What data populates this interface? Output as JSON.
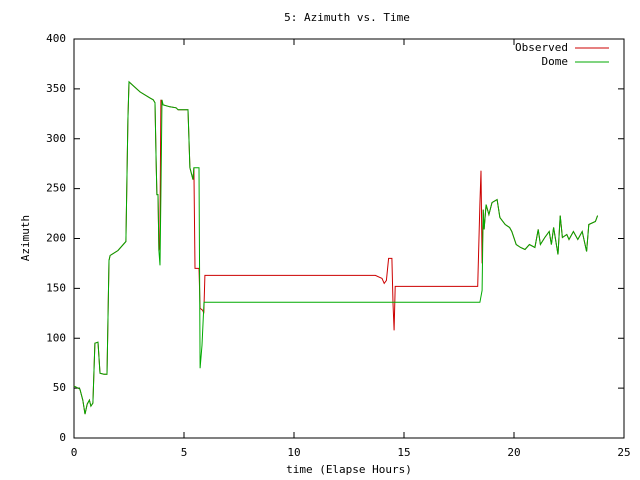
{
  "chart_data": {
    "type": "line",
    "title": "5: Azimuth vs. Time",
    "xlabel": "time (Elapse Hours)",
    "ylabel": "Azimuth",
    "xlim": [
      0,
      25
    ],
    "xticks": [
      0,
      5,
      10,
      15,
      20,
      25
    ],
    "ylim": [
      0,
      400
    ],
    "yticks": [
      0,
      50,
      100,
      150,
      200,
      250,
      300,
      350,
      400
    ],
    "legend": "top-right",
    "series": [
      {
        "name": "Observed",
        "color": "#cc0000",
        "x": [
          0,
          0.27,
          0.4,
          0.5,
          0.6,
          0.7,
          0.77,
          0.86,
          0.95,
          1.09,
          1.18,
          1.36,
          1.5,
          1.59,
          1.64,
          2.0,
          2.36,
          2.45,
          2.5,
          3.0,
          3.45,
          3.6,
          3.68,
          3.73,
          3.77,
          3.82,
          3.86,
          3.9,
          3.95,
          4.05,
          4.36,
          4.64,
          4.73,
          5.18,
          5.27,
          5.41,
          5.45,
          5.5,
          5.68,
          5.73,
          5.85,
          5.9,
          5.95,
          13.7,
          14.0,
          14.1,
          14.2,
          14.3,
          14.45,
          14.5,
          14.55,
          14.6,
          18.35,
          18.45,
          18.5,
          18.55,
          18.6,
          18.64,
          18.73,
          18.86,
          19.0,
          19.23,
          19.36,
          19.6,
          19.8,
          19.9,
          20.1,
          20.3,
          20.5,
          20.7,
          20.95,
          21.1,
          21.2,
          21.4,
          21.6,
          21.7,
          21.8,
          22.0,
          22.1,
          22.2,
          22.4,
          22.5,
          22.7,
          22.9,
          23.1,
          23.3,
          23.4,
          23.7,
          23.8
        ],
        "values": [
          52,
          49,
          38,
          24,
          34,
          38,
          32,
          35,
          95,
          96,
          65,
          64,
          64,
          178,
          183,
          188,
          197,
          319,
          357,
          347,
          341,
          339,
          336,
          279,
          244,
          244,
          188,
          190,
          339,
          334,
          332,
          331,
          329,
          329,
          271,
          259,
          271,
          170,
          170,
          130,
          128,
          125,
          163,
          163,
          160,
          155,
          158,
          180,
          180,
          135,
          108,
          152,
          152,
          235,
          268,
          175,
          229,
          209,
          234,
          224,
          236,
          239,
          221,
          214,
          211,
          207,
          194,
          191,
          189,
          194,
          191,
          209,
          194,
          201,
          207,
          194,
          211,
          184,
          223,
          201,
          204,
          199,
          207,
          199,
          207,
          187,
          214,
          217,
          223
        ]
      },
      {
        "name": "Dome",
        "color": "#00aa00",
        "x": [
          0,
          0.27,
          0.4,
          0.5,
          0.6,
          0.7,
          0.77,
          0.86,
          0.95,
          1.09,
          1.18,
          1.36,
          1.5,
          1.59,
          1.64,
          2.0,
          2.36,
          2.45,
          2.5,
          3.0,
          3.45,
          3.6,
          3.68,
          3.73,
          3.77,
          3.82,
          3.86,
          3.91,
          3.95,
          4.0,
          4.05,
          4.36,
          4.64,
          4.73,
          5.18,
          5.27,
          5.41,
          5.45,
          5.68,
          5.73,
          5.82,
          5.91,
          5.95,
          18.45,
          18.55,
          18.6,
          18.64,
          18.73,
          18.86,
          19.0,
          19.23,
          19.36,
          19.6,
          19.8,
          19.9,
          20.1,
          20.3,
          20.5,
          20.7,
          20.95,
          21.1,
          21.2,
          21.4,
          21.6,
          21.7,
          21.8,
          22.0,
          22.1,
          22.2,
          22.4,
          22.5,
          22.7,
          22.9,
          23.1,
          23.3,
          23.4,
          23.7,
          23.8
        ],
        "values": [
          52,
          49,
          38,
          24,
          34,
          38,
          32,
          35,
          95,
          96,
          65,
          64,
          64,
          178,
          183,
          188,
          197,
          319,
          357,
          347,
          341,
          339,
          336,
          279,
          244,
          244,
          188,
          173,
          244,
          339,
          334,
          332,
          331,
          329,
          329,
          271,
          259,
          271,
          271,
          70,
          93,
          136,
          136,
          136,
          148,
          229,
          209,
          234,
          224,
          236,
          239,
          221,
          214,
          211,
          207,
          194,
          191,
          189,
          194,
          191,
          209,
          194,
          201,
          207,
          194,
          211,
          184,
          223,
          201,
          204,
          199,
          207,
          199,
          207,
          187,
          214,
          217,
          223
        ]
      }
    ]
  }
}
